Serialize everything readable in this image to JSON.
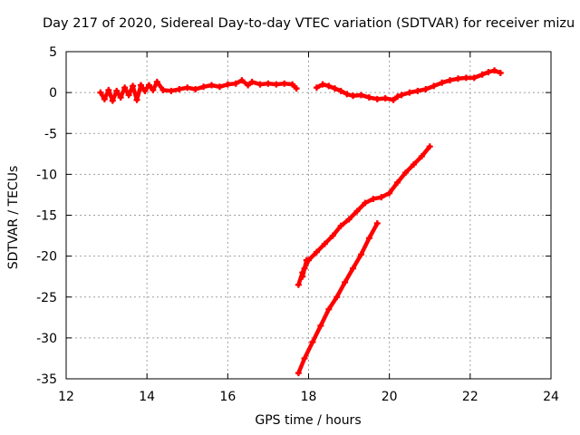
{
  "chart_data": {
    "type": "scatter",
    "title": "Day 217 of 2020, Sidereal Day-to-day VTEC variation (SDTVAR) for receiver mizu",
    "xlabel": "GPS time / hours",
    "ylabel": "SDTVAR / TECUs",
    "xlim": [
      12,
      24
    ],
    "ylim": [
      -35,
      5
    ],
    "xticks": [
      12,
      14,
      16,
      18,
      20,
      22,
      24
    ],
    "yticks": [
      5,
      0,
      -5,
      -10,
      -15,
      -20,
      -25,
      -30,
      -35
    ],
    "grid": true,
    "marker": "plus",
    "color": "#ff0000",
    "series": [
      {
        "points": [
          [
            12.85,
            0.0
          ],
          [
            12.95,
            -0.8
          ],
          [
            13.05,
            0.3
          ],
          [
            13.15,
            -1.0
          ],
          [
            13.25,
            0.2
          ],
          [
            13.35,
            -0.6
          ],
          [
            13.45,
            0.6
          ],
          [
            13.55,
            -0.3
          ],
          [
            13.65,
            0.8
          ],
          [
            13.75,
            -0.9
          ],
          [
            13.85,
            0.9
          ],
          [
            13.95,
            0.2
          ],
          [
            14.05,
            0.9
          ],
          [
            14.15,
            0.3
          ],
          [
            14.25,
            1.3
          ],
          [
            14.4,
            0.3
          ],
          [
            14.6,
            0.2
          ],
          [
            14.8,
            0.4
          ],
          [
            15.0,
            0.6
          ],
          [
            15.2,
            0.4
          ],
          [
            15.4,
            0.7
          ],
          [
            15.6,
            0.9
          ],
          [
            15.8,
            0.7
          ],
          [
            16.0,
            1.0
          ],
          [
            16.2,
            1.1
          ],
          [
            16.35,
            1.5
          ],
          [
            16.5,
            0.9
          ],
          [
            16.6,
            1.3
          ],
          [
            16.8,
            1.0
          ],
          [
            17.0,
            1.1
          ],
          [
            17.2,
            1.0
          ],
          [
            17.4,
            1.1
          ],
          [
            17.6,
            1.0
          ],
          [
            17.7,
            0.5
          ]
        ]
      },
      {
        "points": [
          [
            18.2,
            0.6
          ],
          [
            18.35,
            1.0
          ],
          [
            18.5,
            0.8
          ],
          [
            18.65,
            0.5
          ],
          [
            18.8,
            0.2
          ],
          [
            18.95,
            -0.2
          ],
          [
            19.1,
            -0.4
          ],
          [
            19.3,
            -0.3
          ],
          [
            19.5,
            -0.6
          ],
          [
            19.7,
            -0.8
          ],
          [
            19.9,
            -0.7
          ],
          [
            20.1,
            -0.9
          ],
          [
            20.2,
            -0.5
          ],
          [
            20.3,
            -0.3
          ],
          [
            20.5,
            0.0
          ],
          [
            20.7,
            0.2
          ],
          [
            20.9,
            0.4
          ],
          [
            21.1,
            0.8
          ],
          [
            21.3,
            1.2
          ],
          [
            21.5,
            1.5
          ],
          [
            21.7,
            1.7
          ],
          [
            21.9,
            1.8
          ],
          [
            22.1,
            1.8
          ],
          [
            22.3,
            2.2
          ],
          [
            22.45,
            2.5
          ],
          [
            22.6,
            2.7
          ],
          [
            22.75,
            2.4
          ]
        ]
      },
      {
        "points": [
          [
            17.75,
            -23.5
          ],
          [
            17.85,
            -22.0
          ],
          [
            18.0,
            -20.5
          ],
          [
            18.2,
            -19.5
          ],
          [
            18.4,
            -18.5
          ],
          [
            18.6,
            -17.5
          ],
          [
            18.8,
            -16.3
          ],
          [
            19.0,
            -15.5
          ],
          [
            19.2,
            -14.5
          ],
          [
            19.4,
            -13.5
          ],
          [
            19.6,
            -13.0
          ],
          [
            19.8,
            -12.8
          ],
          [
            20.0,
            -12.3
          ],
          [
            20.2,
            -11.0
          ],
          [
            20.4,
            -9.8
          ],
          [
            20.6,
            -8.8
          ],
          [
            20.8,
            -7.8
          ],
          [
            21.0,
            -6.6
          ]
        ]
      },
      {
        "points": [
          [
            17.95,
            -20.5
          ],
          [
            17.9,
            -21.5
          ],
          [
            17.85,
            -22.5
          ]
        ]
      },
      {
        "points": [
          [
            17.75,
            -34.3
          ],
          [
            17.9,
            -32.5
          ],
          [
            18.1,
            -30.5
          ],
          [
            18.3,
            -28.5
          ],
          [
            18.5,
            -26.5
          ],
          [
            18.7,
            -25.0
          ],
          [
            18.9,
            -23.2
          ],
          [
            19.1,
            -21.5
          ],
          [
            19.3,
            -19.8
          ],
          [
            19.5,
            -17.8
          ],
          [
            19.7,
            -16.0
          ]
        ]
      }
    ]
  }
}
